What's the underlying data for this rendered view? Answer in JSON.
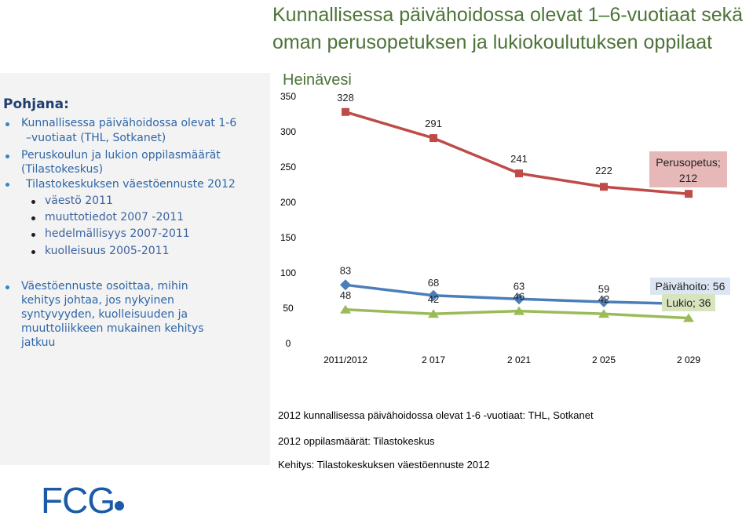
{
  "title": {
    "line1": "Kunnallisessa päivähoidossa olevat 1–6-vuotiaat sekä",
    "line2": "oman perusopetuksen ja lukiokoulutuksen oppilaat"
  },
  "sidebar": {
    "heading": "Pohjana:",
    "items": [
      {
        "text": "Kunnallisessa päivähoidossa olevat 1-6"
      },
      {
        "text": "–vuotiaat (THL, Sotkanet)"
      },
      {
        "text": "Peruskoulun ja lukion oppilasmäärät"
      },
      {
        "text": "(Tilastokeskus)"
      },
      {
        "text": "Tilastokeskuksen väestöennuste 2012"
      }
    ],
    "subitems": [
      {
        "text": "väestö 2011"
      },
      {
        "text": "muuttotiedot 2007 -2011"
      },
      {
        "text": "hedelmällisyys 2007-2011"
      },
      {
        "text": "kuolleisuus 2005-2011"
      }
    ],
    "note": [
      "Väestöennuste osoittaa, mihin",
      "kehitys johtaa, jos nykyinen",
      "syntyvyyden, kuolleisuuden ja",
      "muuttoliikkeen mukainen kehitys",
      "jatkuu"
    ]
  },
  "chart_data": {
    "type": "line",
    "title": "Heinävesi",
    "categories": [
      "2011/2012",
      "2 017",
      "2 021",
      "2 025",
      "2 029"
    ],
    "ylim": [
      0,
      350
    ],
    "yticks": [
      "0",
      "50",
      "100",
      "150",
      "200",
      "250",
      "300",
      "350"
    ],
    "gridlines": false,
    "series": [
      {
        "name": "Perusopetus",
        "values": [
          328,
          291,
          241,
          222,
          212
        ],
        "color": "#be4b48",
        "marker": "square",
        "end_label": "Perusopetus; 212",
        "label_bg": "#e6b9b8"
      },
      {
        "name": "Päivähoito",
        "values": [
          83,
          68,
          63,
          59,
          56
        ],
        "color": "#4a7ebb",
        "marker": "diamond",
        "end_label": "Päivähoito: 56",
        "label_bg": "#dce6f2"
      },
      {
        "name": "Lukio",
        "values": [
          48,
          42,
          46,
          42,
          36
        ],
        "color": "#9bbb59",
        "marker": "triangle",
        "end_label": "Lukio; 36",
        "label_bg": "#d7e4bd"
      }
    ]
  },
  "sources": [
    "2012 kunnallisessa päivähoidossa  olevat 1-6 -vuotiaat:  THL, Sotkanet",
    "2012 oppilasmäärät:  Tilastokeskus",
    "Kehitys: Tilastokeskuksen väestöennuste  2012"
  ],
  "logo": {
    "text": "FCG",
    "color": "#1b5aa6"
  }
}
